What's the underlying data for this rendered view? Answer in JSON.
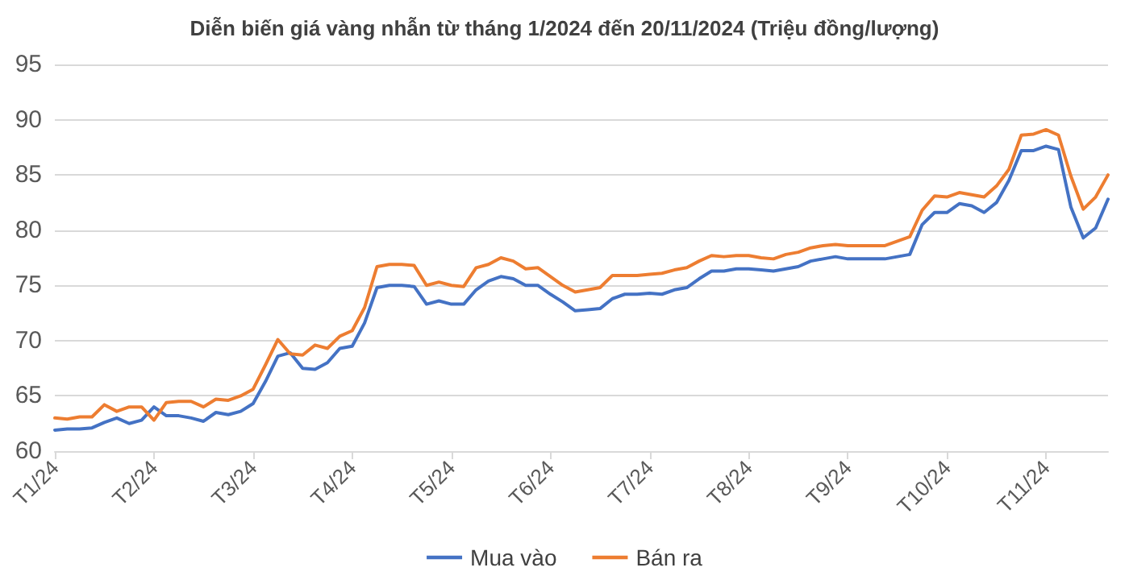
{
  "chart_data": {
    "type": "line",
    "title": "Diễn biến giá vàng nhẫn từ tháng 1/2024 đến 20/11/2024 (Triệu đồng/lượng)",
    "categories": [
      "T1/24",
      null,
      null,
      null,
      null,
      null,
      null,
      null,
      "T2/24",
      null,
      null,
      null,
      null,
      null,
      null,
      null,
      "T3/24",
      null,
      null,
      null,
      null,
      null,
      null,
      null,
      "T4/24",
      null,
      null,
      null,
      null,
      null,
      null,
      null,
      "T5/24",
      null,
      null,
      null,
      null,
      null,
      null,
      null,
      "T6/24",
      null,
      null,
      null,
      null,
      null,
      null,
      null,
      "T7/24",
      null,
      null,
      null,
      null,
      null,
      null,
      null,
      "T8/24",
      null,
      null,
      null,
      null,
      null,
      null,
      null,
      "T9/24",
      null,
      null,
      null,
      null,
      null,
      null,
      null,
      "T10/24",
      null,
      null,
      null,
      null,
      null,
      null,
      null,
      "T11/24",
      null,
      null,
      null,
      null,
      null
    ],
    "series": [
      {
        "name": "Mua vào",
        "color": "#4472c4",
        "values": [
          61.9,
          62.0,
          62.0,
          62.1,
          62.6,
          63.0,
          62.5,
          62.8,
          64.0,
          63.2,
          63.2,
          63.0,
          62.7,
          63.5,
          63.3,
          63.6,
          64.3,
          66.3,
          68.6,
          68.9,
          67.5,
          67.4,
          68.0,
          69.3,
          69.5,
          71.6,
          74.8,
          75.0,
          75.0,
          74.9,
          73.3,
          73.6,
          73.3,
          73.3,
          74.6,
          75.4,
          75.8,
          75.6,
          75.0,
          75.0,
          74.2,
          73.5,
          72.7,
          72.8,
          72.9,
          73.8,
          74.2,
          74.2,
          74.3,
          74.2,
          74.6,
          74.8,
          75.6,
          76.3,
          76.3,
          76.5,
          76.5,
          76.4,
          76.3,
          76.5,
          76.7,
          77.2,
          77.4,
          77.6,
          77.4,
          77.4,
          77.4,
          77.4,
          77.6,
          77.8,
          80.5,
          81.6,
          81.6,
          82.4,
          82.2,
          81.6,
          82.5,
          84.5,
          87.2,
          87.2,
          87.6,
          87.3,
          82.1,
          79.3,
          80.2,
          82.8
        ]
      },
      {
        "name": "Bán ra",
        "color": "#ed7d31",
        "values": [
          63.0,
          62.9,
          63.1,
          63.1,
          64.2,
          63.6,
          64.0,
          64.0,
          62.8,
          64.4,
          64.5,
          64.5,
          64.0,
          64.7,
          64.6,
          65.0,
          65.6,
          67.8,
          70.1,
          68.8,
          68.7,
          69.6,
          69.3,
          70.4,
          70.9,
          73.0,
          76.7,
          76.9,
          76.9,
          76.8,
          75.0,
          75.3,
          75.0,
          74.9,
          76.6,
          76.9,
          77.5,
          77.2,
          76.5,
          76.6,
          75.8,
          75.0,
          74.4,
          74.6,
          74.8,
          75.9,
          75.9,
          75.9,
          76.0,
          76.1,
          76.4,
          76.6,
          77.2,
          77.7,
          77.6,
          77.7,
          77.7,
          77.5,
          77.4,
          77.8,
          78.0,
          78.4,
          78.6,
          78.7,
          78.6,
          78.6,
          78.6,
          78.6,
          79.0,
          79.4,
          81.8,
          83.1,
          83.0,
          83.4,
          83.2,
          83.0,
          84.0,
          85.5,
          88.6,
          88.7,
          89.1,
          88.6,
          84.9,
          81.9,
          83.0,
          85.0
        ]
      }
    ],
    "ylim": [
      60,
      95
    ],
    "yticks": [
      60,
      65,
      70,
      75,
      80,
      85,
      90,
      95
    ],
    "grid": "y",
    "legend": "bottom",
    "marker": "none",
    "line_style": "solid"
  }
}
